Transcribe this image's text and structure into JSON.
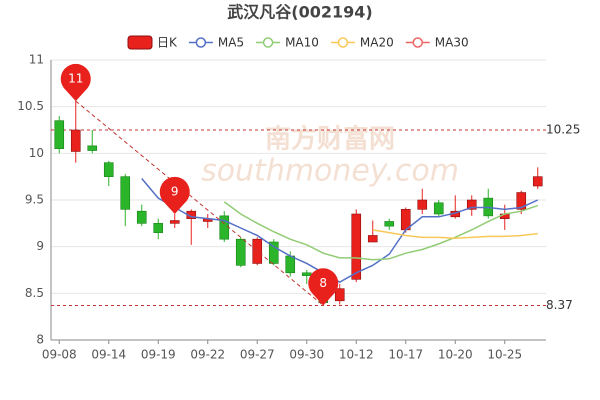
{
  "chart_data": {
    "type": "candlestick",
    "title": "武汉凡谷(002194)",
    "categories": [
      "09-08",
      null,
      null,
      "09-14",
      null,
      null,
      "09-19",
      null,
      null,
      "09-22",
      null,
      null,
      "09-27",
      null,
      null,
      "09-30",
      null,
      null,
      "10-12",
      null,
      null,
      "10-17",
      null,
      null,
      "10-20",
      null,
      null,
      "10-25",
      null,
      null
    ],
    "candles": {
      "name": "日K",
      "up_color": "#e8211d",
      "down_color": "#2bb52b",
      "open": [
        10.35,
        10.02,
        10.08,
        9.9,
        9.75,
        9.38,
        9.25,
        9.25,
        9.3,
        9.27,
        9.33,
        9.08,
        8.82,
        9.05,
        8.9,
        8.72,
        8.65,
        8.42,
        8.65,
        9.05,
        9.27,
        9.18,
        9.4,
        9.47,
        9.32,
        9.4,
        9.52,
        9.3,
        9.4,
        9.65
      ],
      "close": [
        10.05,
        10.25,
        10.03,
        9.75,
        9.4,
        9.25,
        9.15,
        9.28,
        9.38,
        9.3,
        9.08,
        8.8,
        9.08,
        8.82,
        8.72,
        8.69,
        8.4,
        8.55,
        9.35,
        9.12,
        9.22,
        9.4,
        9.5,
        9.35,
        9.38,
        9.5,
        9.33,
        9.35,
        9.58,
        9.75
      ],
      "high": [
        10.4,
        10.56,
        10.25,
        9.92,
        9.78,
        9.45,
        9.3,
        9.35,
        9.4,
        9.35,
        9.38,
        9.1,
        9.1,
        9.08,
        8.95,
        8.75,
        8.7,
        8.6,
        9.4,
        9.28,
        9.3,
        9.42,
        9.62,
        9.5,
        9.55,
        9.55,
        9.62,
        9.45,
        9.6,
        9.85
      ],
      "low": [
        10.0,
        9.9,
        10.0,
        9.65,
        9.22,
        9.22,
        9.08,
        9.2,
        9.02,
        9.2,
        9.05,
        8.78,
        8.8,
        8.8,
        8.68,
        8.6,
        8.37,
        8.38,
        8.62,
        9.05,
        9.18,
        9.15,
        9.35,
        9.32,
        9.3,
        9.33,
        9.3,
        9.18,
        9.35,
        9.62
      ]
    },
    "series": [
      {
        "name": "MA5",
        "color": "#5470c6",
        "values": [
          null,
          null,
          null,
          null,
          null,
          9.73,
          9.52,
          9.42,
          9.32,
          9.3,
          9.28,
          9.2,
          9.12,
          9.0,
          8.9,
          8.82,
          8.72,
          8.62,
          8.72,
          8.8,
          8.92,
          9.18,
          9.32,
          9.32,
          9.36,
          9.42,
          9.42,
          9.4,
          9.42,
          9.5
        ]
      },
      {
        "name": "MA10",
        "color": "#91cc75",
        "values": [
          null,
          null,
          null,
          null,
          null,
          null,
          null,
          null,
          null,
          null,
          9.48,
          9.35,
          9.25,
          9.16,
          9.08,
          9.02,
          8.93,
          8.88,
          8.88,
          8.86,
          8.87,
          8.93,
          8.97,
          9.03,
          9.1,
          9.18,
          9.27,
          9.35,
          9.38,
          9.44
        ]
      },
      {
        "name": "MA20",
        "color": "#fac858",
        "values": [
          null,
          null,
          null,
          null,
          null,
          null,
          null,
          null,
          null,
          null,
          null,
          null,
          null,
          null,
          null,
          null,
          null,
          null,
          null,
          9.18,
          9.15,
          9.12,
          9.1,
          9.1,
          9.09,
          9.1,
          9.11,
          9.11,
          9.12,
          9.14
        ]
      },
      {
        "name": "MA30",
        "color": "#ee6666",
        "values": [
          null,
          null,
          null,
          null,
          null,
          null,
          null,
          null,
          null,
          null,
          null,
          null,
          null,
          null,
          null,
          null,
          null,
          null,
          null,
          null,
          null,
          null,
          null,
          null,
          null,
          null,
          null,
          null,
          null,
          null
        ]
      }
    ],
    "ylim": [
      8,
      11
    ],
    "yticks": [
      8,
      8.5,
      9,
      9.5,
      10,
      10.5,
      11
    ],
    "grid": true,
    "reference_lines": [
      {
        "value": 10.25,
        "label": "10.25"
      },
      {
        "value": 8.37,
        "label": "8.37"
      }
    ],
    "annotations": [
      {
        "label": "11",
        "at": 1,
        "value": 10.56
      },
      {
        "label": "9",
        "at": 7,
        "value": 9.35
      },
      {
        "label": "8",
        "at": 16,
        "value": 8.37
      }
    ],
    "watermark": [
      "南方财富网",
      "southmoney.com"
    ]
  }
}
